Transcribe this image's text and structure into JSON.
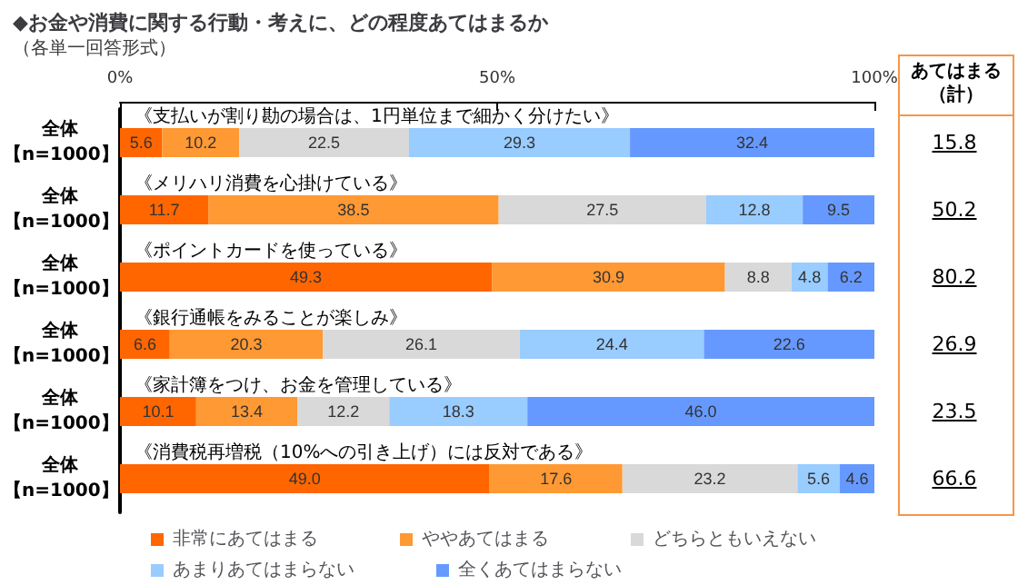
{
  "chart_data": {
    "type": "bar",
    "orientation": "horizontal",
    "stacked": true,
    "title": "◆お金や消費に関する行動・考えに、どの程度あてはまるか",
    "subtitle": "（各単一回答形式）",
    "categories": [
      "全体【n=1000】",
      "全体【n=1000】",
      "全体【n=1000】",
      "全体【n=1000】",
      "全体【n=1000】",
      "全体【n=1000】"
    ],
    "series": [
      {
        "name": "非常にあてはまる",
        "color": "#ff6600",
        "values": [
          5.6,
          11.7,
          49.3,
          6.6,
          10.1,
          49.0
        ],
        "value_labels": [
          "5.6",
          "11.7",
          "49.3",
          "6.6",
          "10.1",
          "49.0"
        ]
      },
      {
        "name": "ややあてはまる",
        "color": "#ff9933",
        "values": [
          10.2,
          38.5,
          30.9,
          20.3,
          13.4,
          17.6
        ],
        "value_labels": [
          "10.2",
          "38.5",
          "30.9",
          "20.3",
          "13.4",
          "17.6"
        ]
      },
      {
        "name": "どちらともいえない",
        "color": "#d9d9d9",
        "values": [
          22.5,
          27.5,
          8.8,
          26.1,
          12.2,
          23.2
        ],
        "value_labels": [
          "22.5",
          "27.5",
          "8.8",
          "26.1",
          "12.2",
          "23.2"
        ]
      },
      {
        "name": "あまりあてはまらない",
        "color": "#99ccff",
        "values": [
          29.3,
          12.8,
          4.8,
          24.4,
          18.3,
          5.6
        ],
        "value_labels": [
          "29.3",
          "12.8",
          "4.8",
          "24.4",
          "18.3",
          "5.6"
        ]
      },
      {
        "name": "全くあてはまらない",
        "color": "#6699ff",
        "values": [
          32.4,
          9.5,
          6.2,
          22.6,
          46.0,
          4.6
        ],
        "value_labels": [
          "32.4",
          "9.5",
          "6.2",
          "22.6",
          "46.0",
          "4.6"
        ]
      }
    ],
    "annotations": [
      "《支払いが割り勘の場合は、1円単位まで細かく分けたい》",
      "《メリハリ消費を心掛けている》",
      "《ポイントカードを使っている》",
      "《銀行通帳をみることが楽しみ》",
      "《家計簿をつけ、お金を管理している》",
      "《消費税再増税（10%への引き上げ）には反対である》",
      "あてはまる（計）",
      "15.8",
      "50.2",
      "80.2",
      "26.9",
      "23.5",
      "66.6"
    ],
    "xlim": [
      0,
      100
    ],
    "xticks": [
      {
        "value": 0,
        "label": "0%"
      },
      {
        "value": 50,
        "label": "50%"
      },
      {
        "value": 100,
        "label": "100%"
      }
    ],
    "grid": false,
    "legend": "bottom"
  }
}
